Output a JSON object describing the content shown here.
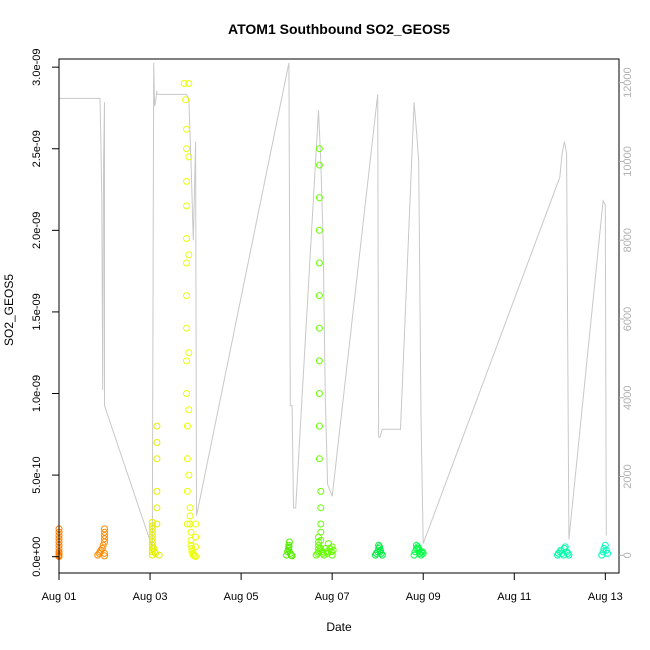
{
  "chart_data": {
    "type": "scatter",
    "title": "ATOM1 Southbound SO2_GEOS5",
    "xlabel": "Date",
    "ylabel": "SO2_GEOS5",
    "x_ticks": [
      "Aug 01",
      "Aug 03",
      "Aug 05",
      "Aug 07",
      "Aug 09",
      "Aug 11",
      "Aug 13"
    ],
    "y_ticks": [
      "0.0e+00",
      "5.0e-10",
      "1.0e-09",
      "1.5e-09",
      "2.0e-09",
      "2.5e-09",
      "3.0e-09"
    ],
    "y2_ticks": [
      "0",
      "2000",
      "4000",
      "6000",
      "8000",
      "10000",
      "12000"
    ],
    "xlim_days": [
      1.0,
      13.3
    ],
    "ylim": [
      -1e-10,
      3.05e-09
    ],
    "y2lim": [
      -450,
      12600
    ],
    "grid": false,
    "altitude_series": {
      "color": "#c8c8c8",
      "x_day": [
        1.0,
        1.0,
        1.35,
        1.35,
        1.9,
        1.92,
        1.94,
        1.96,
        1.98,
        2.0,
        2.0,
        3.05,
        3.08,
        3.1,
        3.12,
        3.15,
        3.15,
        3.8,
        3.85,
        3.9,
        3.95,
        4.0,
        4.02,
        6.05,
        6.08,
        6.12,
        6.15,
        6.2,
        6.7,
        6.75,
        6.8,
        6.85,
        6.9,
        7.0,
        8.0,
        8.02,
        8.05,
        8.1,
        8.5,
        8.8,
        8.85,
        8.9,
        8.95,
        9.0,
        12.0,
        12.05,
        12.1,
        12.15,
        12.2,
        12.95,
        13.0,
        13.02
      ],
      "y_m": [
        200,
        11600,
        11600,
        11600,
        11600,
        10500,
        9000,
        4200,
        10000,
        11500,
        3800,
        200,
        12500,
        11400,
        11500,
        11800,
        11700,
        11700,
        11600,
        10000,
        8000,
        10500,
        1000,
        12500,
        3800,
        3800,
        1200,
        1200,
        11300,
        10000,
        8000,
        4000,
        1800,
        1500,
        11700,
        3000,
        3000,
        3200,
        3200,
        11500,
        10800,
        10000,
        3500,
        300,
        9600,
        10200,
        10500,
        10200,
        400,
        9000,
        8900,
        500
      ]
    },
    "series": [
      {
        "color": "#ff7f00",
        "x_day": [
          1.0,
          1.0,
          1.0,
          1.0,
          1.0,
          1.0,
          1.0,
          1.0,
          1.0,
          1.0,
          1.0,
          1.0
        ],
        "values": [
          1.7e-10,
          1.5e-10,
          1.3e-10,
          1.1e-10,
          9e-11,
          7e-11,
          5e-11,
          3e-11,
          2e-11,
          1e-11,
          5e-12,
          1e-12
        ]
      },
      {
        "color": "#ff8c00",
        "x_day": [
          1.85,
          1.88,
          1.9,
          1.92,
          1.95,
          1.97,
          2.0,
          2.0,
          2.0,
          2.0,
          2.0,
          2.0,
          2.0
        ],
        "values": [
          1e-11,
          2e-11,
          3e-11,
          4e-11,
          5e-11,
          7e-11,
          9e-11,
          1.1e-10,
          1.3e-10,
          1.5e-10,
          1.7e-10,
          5e-12,
          2e-11
        ]
      },
      {
        "color": "#e5ef00",
        "x_day": [
          3.05,
          3.05,
          3.05,
          3.05,
          3.05,
          3.05,
          3.05,
          3.05,
          3.05,
          3.05,
          3.05,
          3.08,
          3.1,
          3.12,
          3.15,
          3.15,
          3.15,
          3.15,
          3.15,
          3.15,
          3.2
        ],
        "values": [
          1e-11,
          3e-11,
          5e-11,
          7e-11,
          9e-11,
          1.1e-10,
          1.3e-10,
          1.5e-10,
          1.7e-10,
          1.9e-10,
          2.1e-10,
          5e-11,
          3e-11,
          2e-11,
          6e-10,
          7e-10,
          8e-10,
          4e-10,
          3e-10,
          2e-10,
          1e-11
        ]
      },
      {
        "color": "#eaff00",
        "x_day": [
          3.75,
          3.78,
          3.8,
          3.8,
          3.8,
          3.8,
          3.8,
          3.8,
          3.8,
          3.8,
          3.8,
          3.8,
          3.82,
          3.82,
          3.82,
          3.82,
          3.85,
          3.85,
          3.85,
          3.85,
          3.85,
          3.85,
          3.88,
          3.88,
          3.88,
          3.9,
          3.9,
          3.9,
          3.92,
          3.92,
          3.95,
          3.95,
          3.98,
          4.0,
          4.0,
          4.0,
          4.0
        ],
        "values": [
          2.9e-09,
          2.8e-09,
          2.62e-09,
          2.5e-09,
          2.3e-09,
          2.15e-09,
          1.95e-09,
          1.8e-09,
          1.6e-09,
          1.4e-09,
          1.2e-09,
          1e-09,
          8e-10,
          6e-10,
          4e-10,
          2e-10,
          2.9e-09,
          2.45e-09,
          1.85e-09,
          1.25e-09,
          9e-10,
          5e-10,
          3e-10,
          2.5e-10,
          2e-10,
          1.5e-10,
          1e-10,
          7e-11,
          5e-11,
          3e-11,
          2e-11,
          1e-11,
          5e-12,
          1e-12,
          2e-10,
          1.2e-10,
          6e-11
        ]
      },
      {
        "color": "#55ee00",
        "x_day": [
          6.0,
          6.02,
          6.04,
          6.05,
          6.06,
          6.08,
          6.1,
          6.12,
          6.05,
          6.05
        ],
        "values": [
          1e-11,
          3e-11,
          5e-11,
          7e-11,
          9e-11,
          2e-11,
          1e-11,
          5e-12,
          4e-11,
          6e-11
        ]
      },
      {
        "color": "#66ff00",
        "x_day": [
          6.65,
          6.68,
          6.7,
          6.72,
          6.72,
          6.72,
          6.72,
          6.72,
          6.72,
          6.72,
          6.72,
          6.72,
          6.72,
          6.72,
          6.75,
          6.75,
          6.75,
          6.75,
          6.75,
          6.75,
          6.78,
          6.8,
          6.82,
          6.85,
          6.88,
          6.9,
          6.92,
          6.95,
          6.98,
          7.0,
          7.0,
          7.02,
          6.7,
          6.7,
          6.7,
          6.7
        ],
        "values": [
          1e-11,
          2e-11,
          3e-11,
          2.5e-09,
          2.4e-09,
          2.2e-09,
          2e-09,
          1.8e-09,
          1.6e-09,
          1.4e-09,
          1.2e-09,
          1e-09,
          8e-10,
          6e-10,
          4e-10,
          3e-10,
          2e-10,
          1.5e-10,
          1e-10,
          5e-11,
          3e-11,
          2e-11,
          1e-11,
          5e-11,
          3e-11,
          2e-11,
          8e-11,
          5e-11,
          3e-11,
          1e-11,
          6e-11,
          4e-11,
          1.2e-10,
          9e-11,
          7e-11,
          5e-11
        ]
      },
      {
        "color": "#00ee44",
        "x_day": [
          7.95,
          7.97,
          8.0,
          8.02,
          8.04,
          8.06,
          8.08,
          8.1,
          8.02,
          8.05
        ],
        "values": [
          1e-11,
          2e-11,
          3e-11,
          5e-11,
          6e-11,
          4e-11,
          2e-11,
          1e-11,
          7e-11,
          3e-11
        ]
      },
      {
        "color": "#00ff44",
        "x_day": [
          8.8,
          8.82,
          8.85,
          8.88,
          8.9,
          8.92,
          8.95,
          8.98,
          9.0,
          8.85,
          8.9,
          8.95
        ],
        "values": [
          1e-11,
          3e-11,
          5e-11,
          6e-11,
          4e-11,
          2e-11,
          1e-11,
          3e-11,
          2e-11,
          7e-11,
          5e-11,
          3e-11
        ]
      },
      {
        "color": "#00ffaa",
        "x_day": [
          11.95,
          11.97,
          12.0,
          12.02,
          12.05,
          12.08,
          12.1,
          12.12,
          12.15,
          12.18,
          12.2
        ],
        "values": [
          1e-11,
          2e-11,
          3e-11,
          4e-11,
          2e-11,
          1e-11,
          5e-11,
          6e-11,
          3e-11,
          2e-11,
          1e-11
        ]
      },
      {
        "color": "#00ffbb",
        "x_day": [
          12.92,
          12.95,
          12.97,
          13.0,
          13.02,
          13.05
        ],
        "values": [
          1e-11,
          3e-11,
          5e-11,
          7e-11,
          4e-11,
          2e-11
        ]
      }
    ]
  }
}
